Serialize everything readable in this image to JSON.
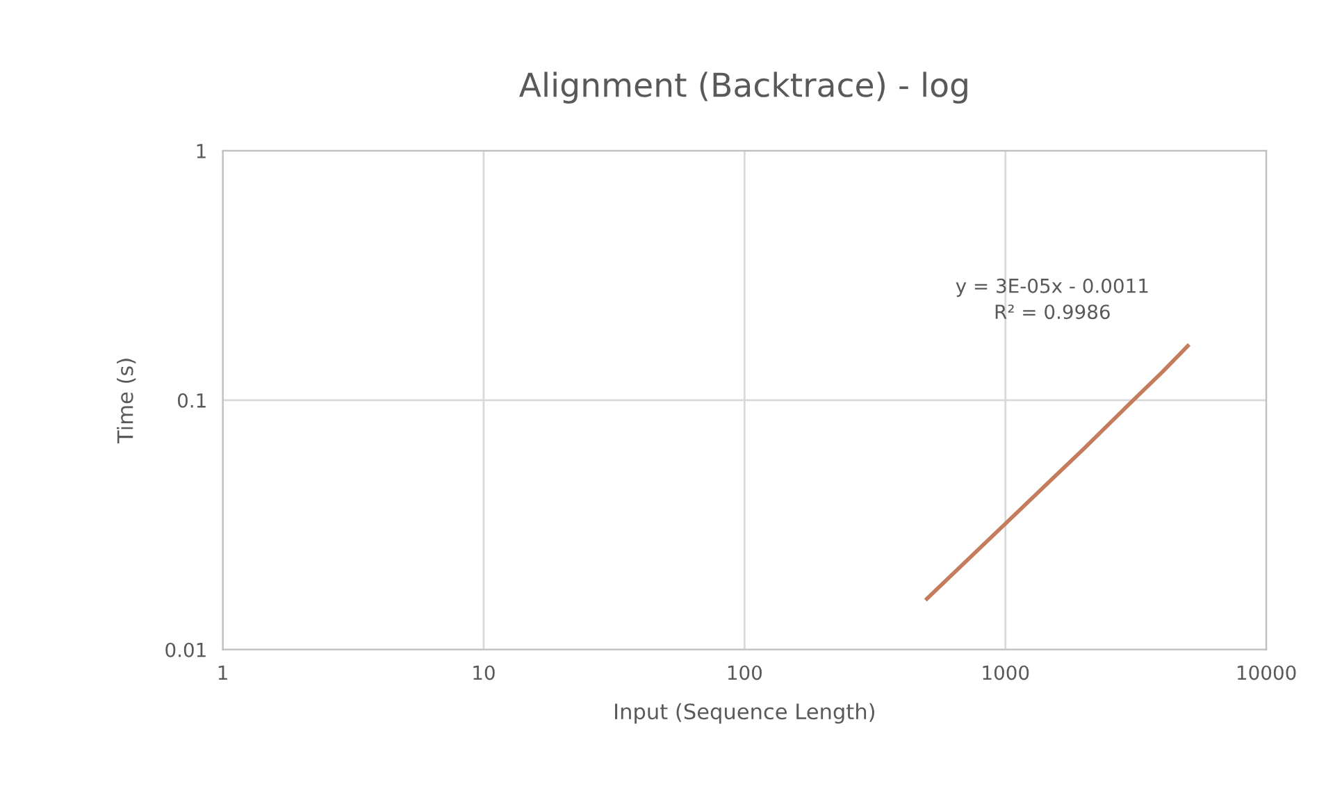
{
  "chart_data": {
    "type": "line",
    "title": "Alignment (Backtrace) - log",
    "xlabel": "Input (Sequence Length)",
    "ylabel": "Time (s)",
    "log": "xy",
    "grid": true,
    "legend": false,
    "x": [
      500,
      1000,
      2000,
      3000,
      4000,
      5000
    ],
    "series": [
      {
        "color": "#c47c5c",
        "values": [
          0.016,
          0.032,
          0.064,
          0.097,
          0.13,
          0.165
        ]
      }
    ],
    "xlim": [
      1,
      10000
    ],
    "xticks": [
      1,
      10,
      100,
      1000,
      10000
    ],
    "ylim": [
      0.01,
      1
    ],
    "yticks": [
      0.01,
      0.1,
      1
    ],
    "annotations": [
      "y = 3E-05x - 0.0011\nR² = 0.9986"
    ]
  }
}
